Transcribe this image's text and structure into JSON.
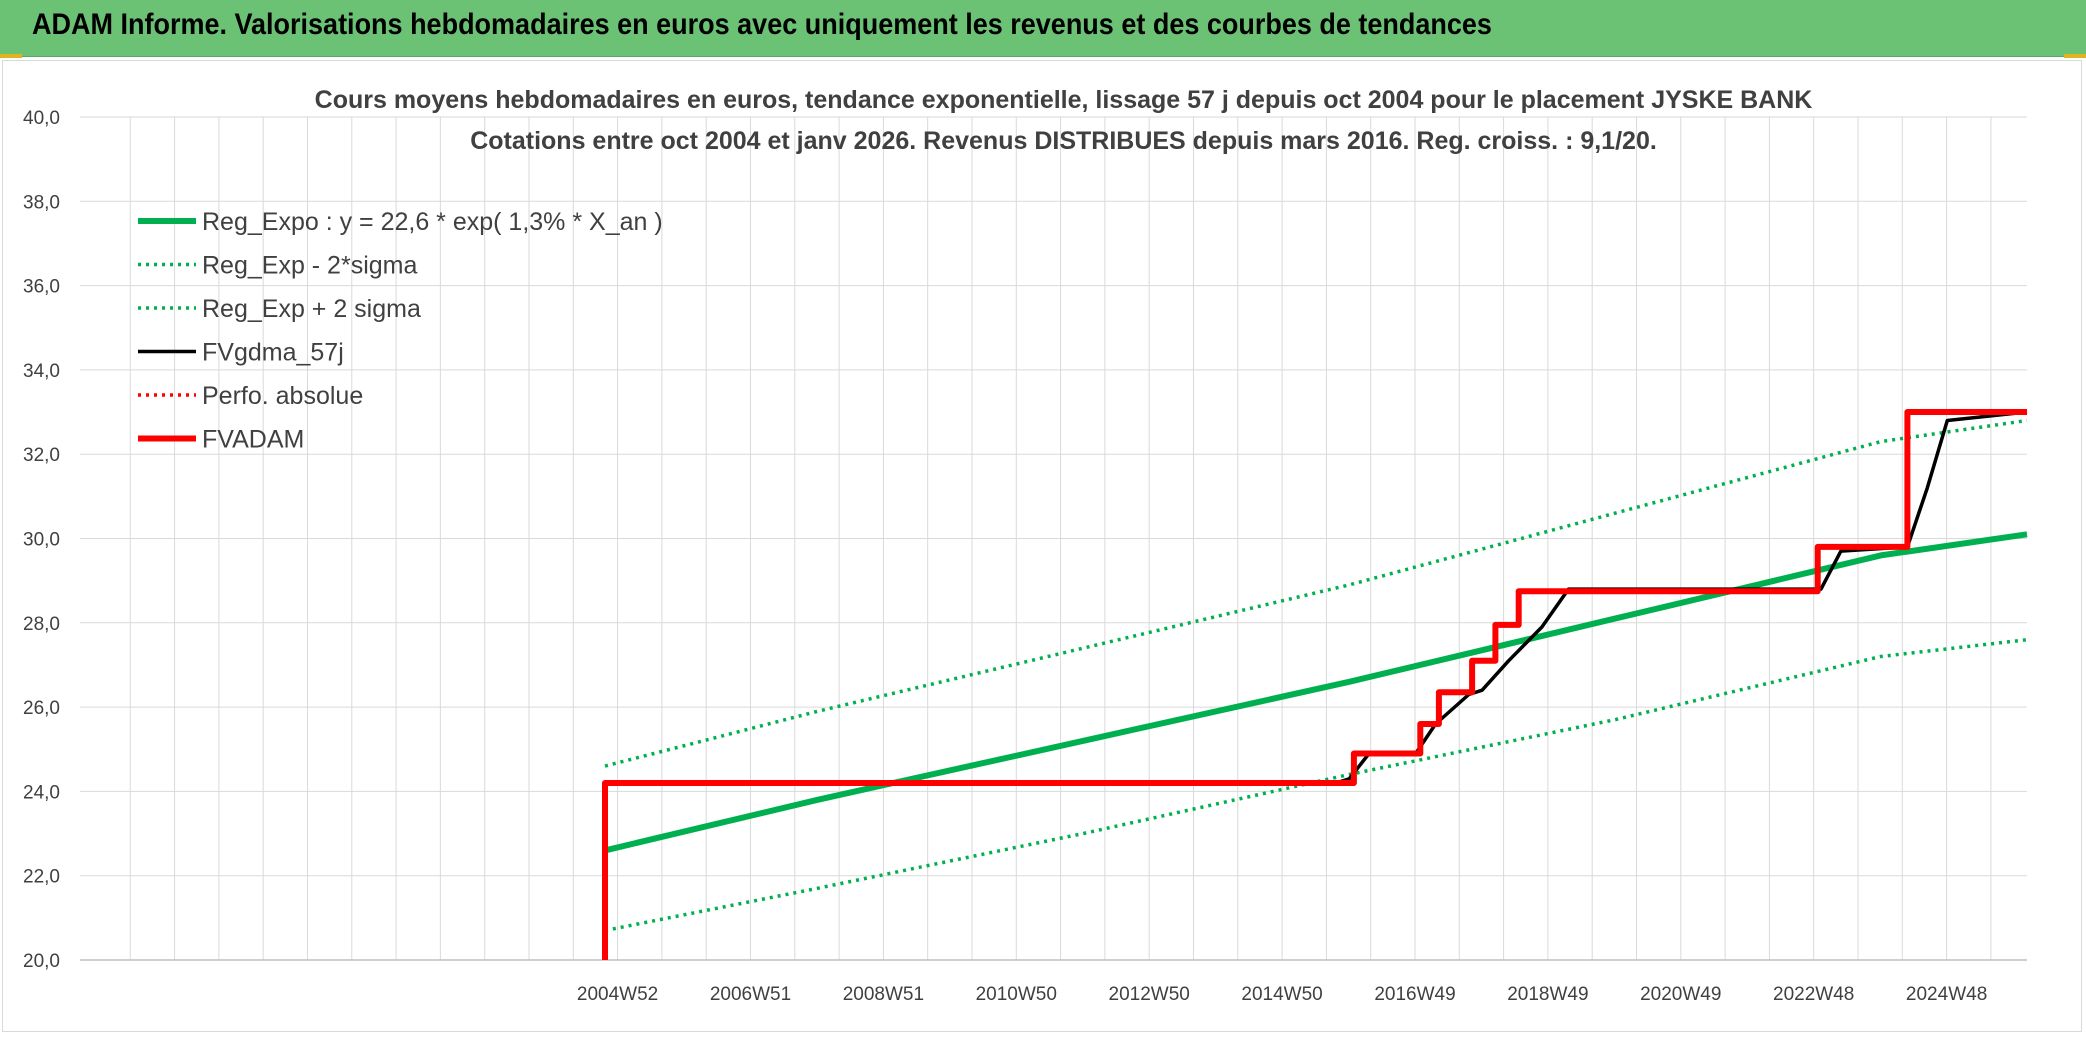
{
  "header": {
    "title": "ADAM Informe. Valorisations hebdomadaires en euros avec uniquement les revenus et des courbes de tendances"
  },
  "colors": {
    "header_bg": "#6cc274",
    "green": "#00b050",
    "black": "#000000",
    "red": "#ff0000",
    "grid": "#d9d9d9",
    "text": "#404040"
  },
  "chart_data": {
    "type": "line",
    "title_lines": [
      "Cours moyens hebdomadaires en euros, tendance exponentielle, lissage 57 j depuis oct 2004 pour le placement JYSKE BANK",
      "Cotations entre oct 2004 et janv 2026. Revenus DISTRIBUES depuis mars 2016. Reg. croiss. : 9,1/20."
    ],
    "ylim": [
      20,
      40
    ],
    "y_ticks": [
      "20,0",
      "22,0",
      "24,0",
      "26,0",
      "28,0",
      "30,0",
      "32,0",
      "34,0",
      "36,0",
      "38,0",
      "40,0"
    ],
    "x_axis_years": [
      1996.9,
      2026.2
    ],
    "x_ticks": [
      {
        "label": "2004W52",
        "year": 2004.99
      },
      {
        "label": "2006W51",
        "year": 2006.99
      },
      {
        "label": "2008W51",
        "year": 2008.99
      },
      {
        "label": "2010W50",
        "year": 2010.99
      },
      {
        "label": "2012W50",
        "year": 2012.99
      },
      {
        "label": "2014W50",
        "year": 2014.99
      },
      {
        "label": "2016W49",
        "year": 2016.99
      },
      {
        "label": "2018W49",
        "year": 2018.99
      },
      {
        "label": "2020W49",
        "year": 2020.99
      },
      {
        "label": "2022W48",
        "year": 2022.99
      },
      {
        "label": "2024W48",
        "year": 2024.99
      }
    ],
    "grid": true,
    "legend_position": "top-left",
    "legend": [
      {
        "label": "Reg_Expo : y = 22,6 * exp( 1,3% *  X_an )",
        "color": "#00b050",
        "style": "solid-thick"
      },
      {
        "label": "Reg_Exp - 2*sigma",
        "color": "#00b050",
        "style": "dotted"
      },
      {
        "label": "Reg_Exp + 2 sigma",
        "color": "#00b050",
        "style": "dotted"
      },
      {
        "label": "FVgdma_57j",
        "color": "#000000",
        "style": "solid"
      },
      {
        "label": "Perfo. absolue",
        "color": "#ff0000",
        "style": "dotted"
      },
      {
        "label": "FVADAM",
        "color": "#ff0000",
        "style": "solid-thick"
      }
    ],
    "series": [
      {
        "name": "Reg_Expo : y = 22,6 * exp( 1,3% *  X_an )",
        "x": [
          2004.8,
          2008,
          2012,
          2016,
          2020,
          2024,
          2026.2
        ],
        "y": [
          22.6,
          23.8,
          25.2,
          26.6,
          28.1,
          29.6,
          30.1
        ]
      },
      {
        "name": "Reg_Exp - 2*sigma",
        "x": [
          2004.8,
          2008,
          2012,
          2016,
          2020,
          2024,
          2026.2
        ],
        "y": [
          20.7,
          21.7,
          23.0,
          24.4,
          25.7,
          27.2,
          27.6
        ]
      },
      {
        "name": "Reg_Exp + 2 sigma",
        "x": [
          2004.8,
          2008,
          2012,
          2016,
          2020,
          2024,
          2026.2
        ],
        "y": [
          24.6,
          25.9,
          27.4,
          28.9,
          30.6,
          32.3,
          32.8
        ]
      },
      {
        "name": "FVgdma_57j",
        "x": [
          2004.8,
          2015.8,
          2016.0,
          2016.3,
          2017.0,
          2017.3,
          2017.8,
          2018.0,
          2018.4,
          2018.9,
          2019.3,
          2023.1,
          2023.4,
          2024.4,
          2024.7,
          2025.0,
          2026.2
        ],
        "y": [
          24.2,
          24.2,
          24.3,
          24.9,
          24.9,
          25.6,
          26.3,
          26.4,
          27.1,
          27.9,
          28.8,
          28.8,
          29.7,
          29.8,
          31.2,
          32.8,
          33.0
        ]
      },
      {
        "name": "FVADAM",
        "x": [
          2004.8,
          2004.8,
          2016.07,
          2016.07,
          2017.07,
          2017.07,
          2017.35,
          2017.35,
          2017.85,
          2017.85,
          2018.2,
          2018.2,
          2018.55,
          2018.55,
          2019.05,
          2019.05,
          2023.05,
          2023.05,
          2024.4,
          2024.4,
          2026.2
        ],
        "y": [
          20.0,
          24.2,
          24.2,
          24.9,
          24.9,
          25.6,
          25.6,
          26.35,
          26.35,
          27.1,
          27.1,
          27.95,
          27.95,
          28.75,
          28.75,
          28.75,
          28.75,
          29.8,
          29.8,
          33.0,
          33.0
        ]
      }
    ]
  }
}
